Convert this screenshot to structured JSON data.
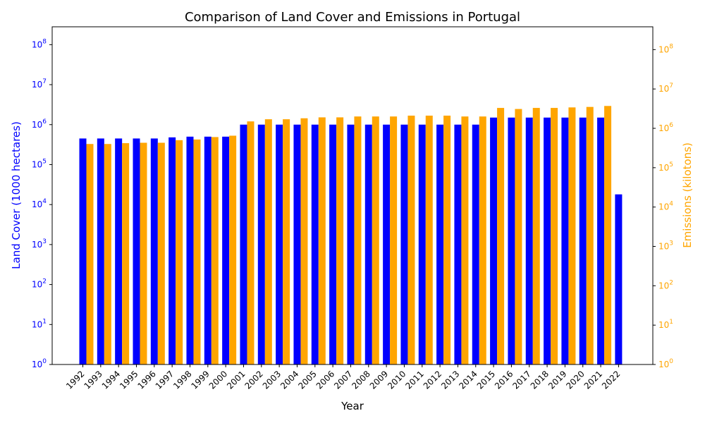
{
  "chart_data": {
    "type": "bar",
    "title": "Comparison of Land Cover and Emissions in Portugal",
    "xlabel": "Year",
    "categories": [
      "1992",
      "1993",
      "1994",
      "1995",
      "1996",
      "1997",
      "1998",
      "1999",
      "2000",
      "2001",
      "2002",
      "2003",
      "2004",
      "2005",
      "2006",
      "2007",
      "2008",
      "2009",
      "2010",
      "2011",
      "2012",
      "2013",
      "2014",
      "2015",
      "2016",
      "2017",
      "2018",
      "2019",
      "2020",
      "2021",
      "2022"
    ],
    "y_left": {
      "label": "Land Cover (1000 hectares)",
      "scale": "log",
      "range": [
        1,
        280000000
      ],
      "ticks": [
        {
          "base": "10",
          "exp": "0",
          "value": 1
        },
        {
          "base": "10",
          "exp": "1",
          "value": 10
        },
        {
          "base": "10",
          "exp": "2",
          "value": 100
        },
        {
          "base": "10",
          "exp": "3",
          "value": 1000
        },
        {
          "base": "10",
          "exp": "4",
          "value": 10000
        },
        {
          "base": "10",
          "exp": "5",
          "value": 100000
        },
        {
          "base": "10",
          "exp": "6",
          "value": 1000000
        },
        {
          "base": "10",
          "exp": "7",
          "value": 10000000
        },
        {
          "base": "10",
          "exp": "8",
          "value": 100000000
        }
      ],
      "color": "#0000ff"
    },
    "y_right": {
      "label": "Emissions (kilotons)",
      "scale": "log",
      "range": [
        1,
        380000000
      ],
      "ticks": [
        {
          "base": "10",
          "exp": "0",
          "value": 1
        },
        {
          "base": "10",
          "exp": "1",
          "value": 10
        },
        {
          "base": "10",
          "exp": "2",
          "value": 100
        },
        {
          "base": "10",
          "exp": "3",
          "value": 1000
        },
        {
          "base": "10",
          "exp": "4",
          "value": 10000
        },
        {
          "base": "10",
          "exp": "5",
          "value": 100000
        },
        {
          "base": "10",
          "exp": "6",
          "value": 1000000
        },
        {
          "base": "10",
          "exp": "7",
          "value": 10000000
        },
        {
          "base": "10",
          "exp": "8",
          "value": 100000000
        }
      ],
      "color": "#ffa500"
    },
    "series": [
      {
        "axis": "left",
        "color": "#0000ff",
        "values": [
          450000,
          450000,
          450000,
          450000,
          450000,
          480000,
          500000,
          500000,
          500000,
          1000000,
          1000000,
          1000000,
          1000000,
          1000000,
          1000000,
          1000000,
          1000000,
          1000000,
          1000000,
          1000000,
          1000000,
          1000000,
          1000000,
          1500000,
          1500000,
          1500000,
          1500000,
          1500000,
          1500000,
          1500000,
          18000
        ]
      },
      {
        "axis": "right",
        "color": "#ffa500",
        "values": [
          400000,
          400000,
          420000,
          430000,
          430000,
          500000,
          520000,
          600000,
          650000,
          1500000,
          1700000,
          1700000,
          1800000,
          1900000,
          1900000,
          2000000,
          2000000,
          2000000,
          2100000,
          2100000,
          2100000,
          2000000,
          2000000,
          3300000,
          3100000,
          3300000,
          3300000,
          3400000,
          3500000,
          3700000,
          null
        ]
      }
    ]
  }
}
